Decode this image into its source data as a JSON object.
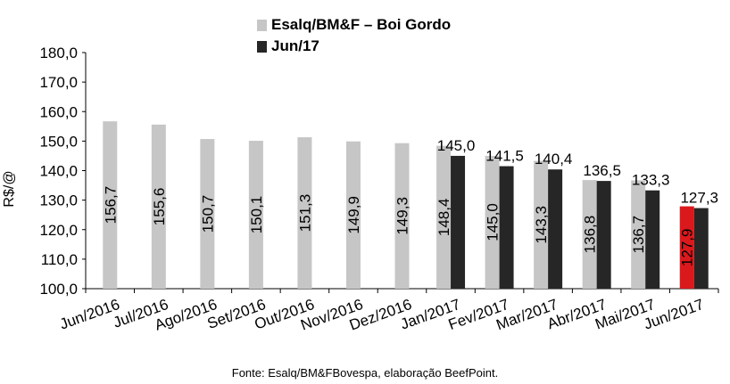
{
  "chart_data": {
    "type": "bar",
    "ylabel": "R$/@",
    "ylim": [
      100,
      180
    ],
    "yticks": [
      "100,0",
      "110,0",
      "120,0",
      "130,0",
      "140,0",
      "150,0",
      "160,0",
      "170,0",
      "180,0"
    ],
    "grid": false,
    "legend_position": "top-center",
    "categories": [
      "Jun/2016",
      "Jul/2016",
      "Ago/2016",
      "Set/2016",
      "Out/2016",
      "Nov/2016",
      "Dez/2016",
      "Jan/2017",
      "Fev/2017",
      "Mar/2017",
      "Abr/2017",
      "Mai/2017",
      "Jun/2017"
    ],
    "series": [
      {
        "name": "Esalq/BM&F – Boi Gordo",
        "color": "#c6c6c6",
        "highlight_color": "#d9191c",
        "highlight_index": 12,
        "values": [
          156.7,
          155.6,
          150.7,
          150.1,
          151.3,
          149.9,
          149.3,
          148.4,
          145.0,
          143.3,
          136.8,
          136.7,
          127.9
        ],
        "labels": [
          "156,7",
          "155,6",
          "150,7",
          "150,1",
          "151,3",
          "149,9",
          "149,3",
          "148,4",
          "145,0",
          "143,3",
          "136,8",
          "136,7",
          "127,9"
        ]
      },
      {
        "name": "Jun/17",
        "color": "#262626",
        "values": [
          null,
          null,
          null,
          null,
          null,
          null,
          null,
          145.0,
          141.5,
          140.4,
          136.5,
          133.3,
          127.3
        ],
        "labels": [
          "",
          "",
          "",
          "",
          "",
          "",
          "",
          "145,0",
          "141,5",
          "140,4",
          "136,5",
          "133,3",
          "127,3"
        ]
      }
    ]
  },
  "source": "Fonte: Esalq/BM&FBovespa, elaboração BeefPoint."
}
